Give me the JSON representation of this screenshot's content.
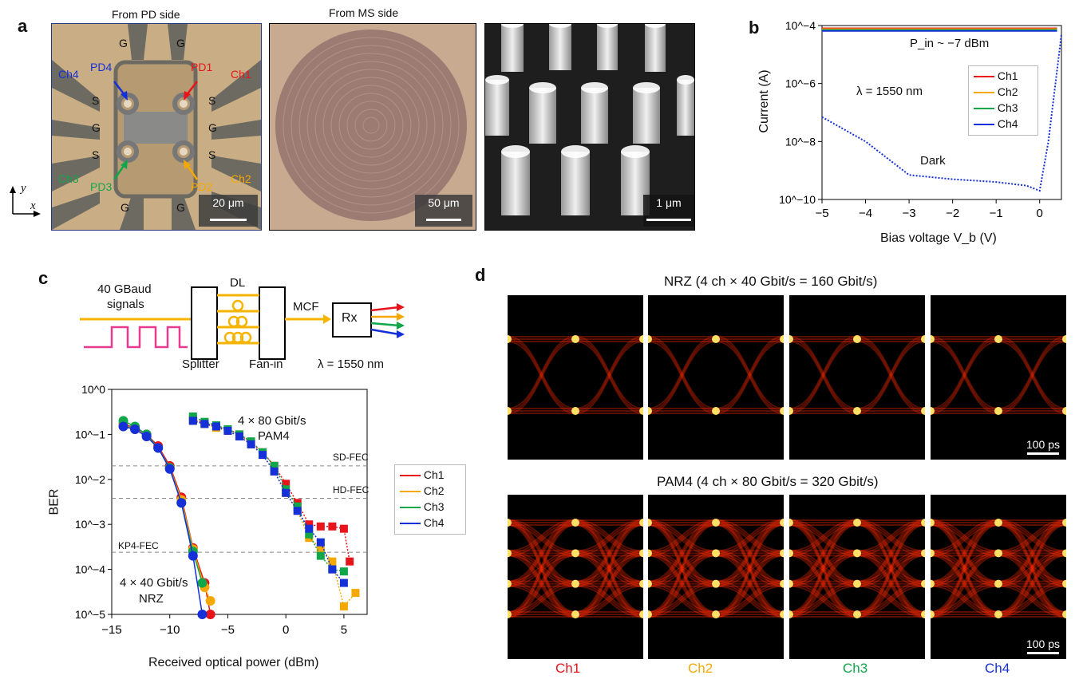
{
  "panels": {
    "a": "a",
    "b": "b",
    "c": "c",
    "d": "d"
  },
  "panel_a": {
    "caption_pd": "From PD side",
    "caption_ms": "From MS side",
    "axis_y": "y",
    "axis_x": "x",
    "pd_labels": {
      "ch4": "Ch4",
      "pd4": "PD4",
      "pd1": "PD1",
      "ch1": "Ch1",
      "ch3": "Ch3",
      "pd3": "PD3",
      "pd2": "PD2",
      "ch2": "Ch2"
    },
    "pad_g": "G",
    "pad_s": "S",
    "scale1": "20 μm",
    "scale2": "50 μm",
    "scale3": "1 μm"
  },
  "panel_b": {
    "ylabel": "Current (A)",
    "xlabel": "Bias voltage V_b (V)",
    "pin_label": "P_in ~ −7 dBm",
    "lambda_label": "λ = 1550 nm",
    "dark_label": "Dark",
    "xticks": [
      "−5",
      "−4",
      "−3",
      "−2",
      "−1",
      "0"
    ],
    "yticks": [
      "10^−10",
      "10^−8",
      "10^−6",
      "10^−4"
    ],
    "legend": [
      "Ch1",
      "Ch2",
      "Ch3",
      "Ch4"
    ]
  },
  "panel_c": {
    "signal_label": "40 GBaud",
    "signal_label2": "signals",
    "dl_label": "DL",
    "mcf_label": "MCF",
    "rx_label": "Rx",
    "splitter_label": "Splitter",
    "fanin_label": "Fan-in",
    "lambda_label": "λ = 1550 nm",
    "ylabel": "BER",
    "xlabel": "Received optical power (dBm)",
    "sd_fec": "SD-FEC",
    "hd_fec": "HD-FEC",
    "kp4_fec": "KP4-FEC",
    "pam4_label1": "4 × 80 Gbit/s",
    "pam4_label2": "PAM4",
    "nrz_label1": "4 × 40 Gbit/s",
    "nrz_label2": "NRZ",
    "legend": [
      "Ch1",
      "Ch2",
      "Ch3",
      "Ch4"
    ]
  },
  "panel_d": {
    "nrz_title": "NRZ (4 ch × 40 Gbit/s = 160 Gbit/s)",
    "pam4_title": "PAM4 (4 ch × 80 Gbit/s = 320 Gbit/s)",
    "scale": "100 ps",
    "channels": [
      "Ch1",
      "Ch2",
      "Ch3",
      "Ch4"
    ]
  },
  "colors": {
    "ch1": "#e8141c",
    "ch2": "#f5a800",
    "ch3": "#12a64a",
    "ch4": "#1530d8"
  },
  "chart_data": [
    {
      "type": "line",
      "title": "",
      "xlabel": "Bias voltage Vb (V)",
      "ylabel": "Current (A)",
      "xlim": [
        -5,
        0.5
      ],
      "ylim": [
        1e-10,
        0.0001
      ],
      "yscale": "log",
      "series": [
        {
          "name": "Ch1",
          "x": [
            -5,
            0,
            0.4
          ],
          "y": [
            8e-05,
            8e-05,
            8e-05
          ]
        },
        {
          "name": "Ch2",
          "x": [
            -5,
            0,
            0.4
          ],
          "y": [
            7.5e-05,
            7.5e-05,
            7.5e-05
          ]
        },
        {
          "name": "Ch3",
          "x": [
            -5,
            0,
            0.4
          ],
          "y": [
            7e-05,
            7e-05,
            7e-05
          ]
        },
        {
          "name": "Ch4",
          "x": [
            -5,
            0,
            0.4
          ],
          "y": [
            6.5e-05,
            6.5e-05,
            6.5e-05
          ]
        },
        {
          "name": "Dark",
          "x": [
            -5,
            -4,
            -3,
            -2,
            -1,
            -0.3,
            0,
            0.2,
            0.5
          ],
          "y": [
            7e-08,
            1e-08,
            7e-10,
            5e-10,
            4e-10,
            3e-10,
            2e-10,
            1e-08,
            5e-05
          ]
        }
      ]
    },
    {
      "type": "scatter",
      "xlabel": "Received optical power (dBm)",
      "ylabel": "BER",
      "xlim": [
        -15,
        7
      ],
      "ylim": [
        1e-05,
        1
      ],
      "yscale": "log",
      "thresholds": {
        "SD-FEC": 0.02,
        "HD-FEC": 0.0038,
        "KP4-FEC": 0.00024
      },
      "series": [
        {
          "name": "Ch1 NRZ",
          "x": [
            -14,
            -13,
            -12,
            -11,
            -10,
            -9,
            -8,
            -7,
            -6.5
          ],
          "y": [
            0.17,
            0.14,
            0.1,
            0.055,
            0.02,
            0.004,
            0.0003,
            5e-05,
            1e-05
          ]
        },
        {
          "name": "Ch2 NRZ",
          "x": [
            -14,
            -13,
            -12,
            -11,
            -10,
            -9,
            -8,
            -7,
            -6.5
          ],
          "y": [
            0.16,
            0.13,
            0.09,
            0.05,
            0.018,
            0.0035,
            0.00028,
            4e-05,
            2e-05
          ]
        },
        {
          "name": "Ch3 NRZ",
          "x": [
            -14,
            -13,
            -12,
            -11,
            -10,
            -9,
            -8,
            -7.2
          ],
          "y": [
            0.2,
            0.15,
            0.1,
            0.05,
            0.018,
            0.003,
            0.00025,
            5e-05
          ]
        },
        {
          "name": "Ch4 NRZ",
          "x": [
            -14,
            -13,
            -12,
            -11,
            -10,
            -9,
            -8,
            -7.2
          ],
          "y": [
            0.15,
            0.13,
            0.09,
            0.05,
            0.017,
            0.003,
            0.0002,
            1e-05
          ]
        },
        {
          "name": "Ch1 PAM4",
          "x": [
            -8,
            -7,
            -6,
            -5,
            -4,
            -3,
            -2,
            -1,
            0,
            1,
            2,
            3,
            4,
            5,
            5.5
          ],
          "y": [
            0.22,
            0.18,
            0.15,
            0.13,
            0.1,
            0.065,
            0.04,
            0.02,
            0.008,
            0.003,
            0.001,
            0.0009,
            0.0009,
            0.0008,
            0.00015
          ]
        },
        {
          "name": "Ch2 PAM4",
          "x": [
            -8,
            -7,
            -6,
            -5,
            -4,
            -3,
            -2,
            -1,
            0,
            1,
            2,
            3,
            4,
            5,
            6
          ],
          "y": [
            0.2,
            0.17,
            0.14,
            0.12,
            0.09,
            0.06,
            0.035,
            0.015,
            0.005,
            0.002,
            0.0005,
            0.0003,
            0.00015,
            1.5e-05,
            3e-05
          ]
        },
        {
          "name": "Ch3 PAM4",
          "x": [
            -8,
            -7,
            -6,
            -5,
            -4,
            -3,
            -2,
            -1,
            0,
            1,
            2,
            3,
            4,
            5
          ],
          "y": [
            0.25,
            0.19,
            0.16,
            0.13,
            0.1,
            0.07,
            0.04,
            0.02,
            0.006,
            0.0025,
            0.0006,
            0.0002,
            0.0001,
            9e-05
          ]
        },
        {
          "name": "Ch4 PAM4",
          "x": [
            -8,
            -7,
            -6,
            -5,
            -4,
            -3,
            -2,
            -1,
            0,
            1,
            2,
            3,
            4,
            5
          ],
          "y": [
            0.2,
            0.17,
            0.15,
            0.12,
            0.09,
            0.06,
            0.035,
            0.015,
            0.005,
            0.002,
            0.0008,
            0.0004,
            0.0001,
            5e-05
          ]
        }
      ],
      "legend": [
        "Ch1",
        "Ch2",
        "Ch3",
        "Ch4"
      ]
    }
  ]
}
